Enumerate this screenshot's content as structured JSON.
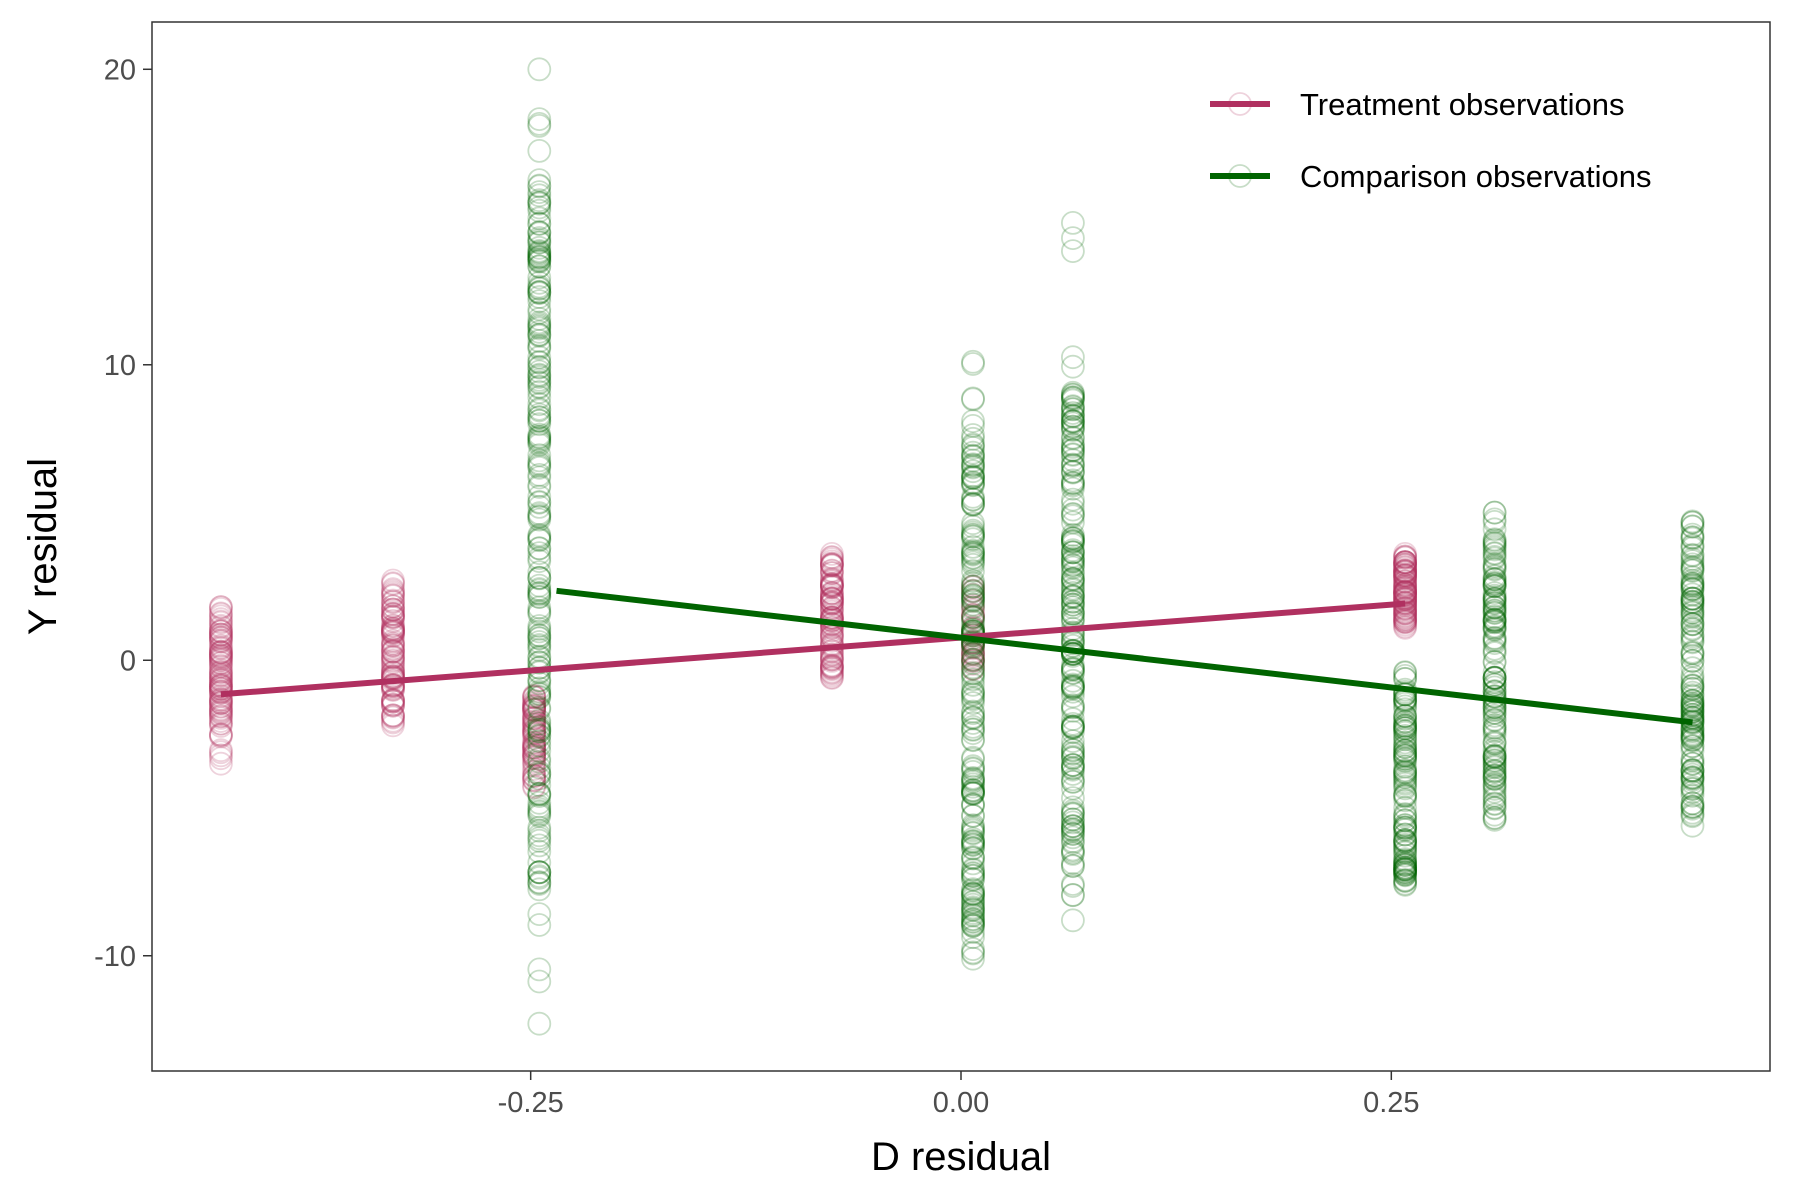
{
  "chart_data": {
    "type": "scatter",
    "xlabel": "D residual",
    "ylabel": "Y residual",
    "xlim": [
      -0.47,
      0.47
    ],
    "ylim": [
      -13.9,
      21.6
    ],
    "x_ticks": [
      -0.25,
      0.0,
      0.25
    ],
    "x_tick_labels": [
      "-0.25",
      "0.00",
      "0.25"
    ],
    "y_ticks": [
      -10,
      0,
      10,
      20
    ],
    "y_tick_labels": [
      "-10",
      "0",
      "10",
      "20"
    ],
    "grid": false,
    "legend_position": "top-right",
    "marker": "open-circle",
    "series": [
      {
        "name": "Treatment observations",
        "color": "#B03060",
        "point_alpha": 0.22,
        "columns": [
          {
            "x": -0.43,
            "ymin": -3.5,
            "ymax": 1.8,
            "core_min": -2.6,
            "core_max": 1.5,
            "n": 90
          },
          {
            "x": -0.33,
            "ymin": -2.2,
            "ymax": 2.7,
            "core_min": -1.9,
            "core_max": 2.3,
            "n": 90
          },
          {
            "x": -0.248,
            "ymin": -4.3,
            "ymax": -1.2,
            "core_min": -4.0,
            "core_max": -1.4,
            "n": 60
          },
          {
            "x": -0.075,
            "ymin": -0.6,
            "ymax": 3.6,
            "core_min": -0.4,
            "core_max": 3.3,
            "n": 90
          },
          {
            "x": 0.007,
            "ymin": -0.3,
            "ymax": 2.5,
            "core_min": 0.0,
            "core_max": 2.2,
            "n": 30
          },
          {
            "x": 0.258,
            "ymin": 1.1,
            "ymax": 3.6,
            "core_min": 1.3,
            "core_max": 3.4,
            "n": 90
          }
        ],
        "fit_line": {
          "x": [
            -0.43,
            0.258
          ],
          "y": [
            -1.15,
            1.92
          ]
        }
      },
      {
        "name": "Comparison observations",
        "color": "#006400",
        "point_alpha": 0.22,
        "columns": [
          {
            "x": -0.245,
            "ymin": -12.3,
            "ymax": 20.0,
            "core_min": -7.8,
            "core_max": 16.3,
            "n": 220
          },
          {
            "x": 0.007,
            "ymin": -10.1,
            "ymax": 10.1,
            "core_min": -9.2,
            "core_max": 8.0,
            "n": 200
          },
          {
            "x": 0.065,
            "ymin": -8.8,
            "ymax": 14.8,
            "core_min": -7.0,
            "core_max": 9.5,
            "n": 200
          },
          {
            "x": 0.258,
            "ymin": -7.6,
            "ymax": -0.4,
            "core_min": -7.3,
            "core_max": -0.8,
            "n": 120
          },
          {
            "x": 0.31,
            "ymin": -5.4,
            "ymax": 5.0,
            "core_min": -5.0,
            "core_max": 4.1,
            "n": 140
          },
          {
            "x": 0.425,
            "ymin": -5.6,
            "ymax": 4.7,
            "core_min": -5.0,
            "core_max": 4.3,
            "n": 140
          }
        ],
        "fit_line": {
          "x": [
            -0.235,
            0.425
          ],
          "y": [
            2.35,
            -2.1
          ]
        }
      }
    ]
  }
}
